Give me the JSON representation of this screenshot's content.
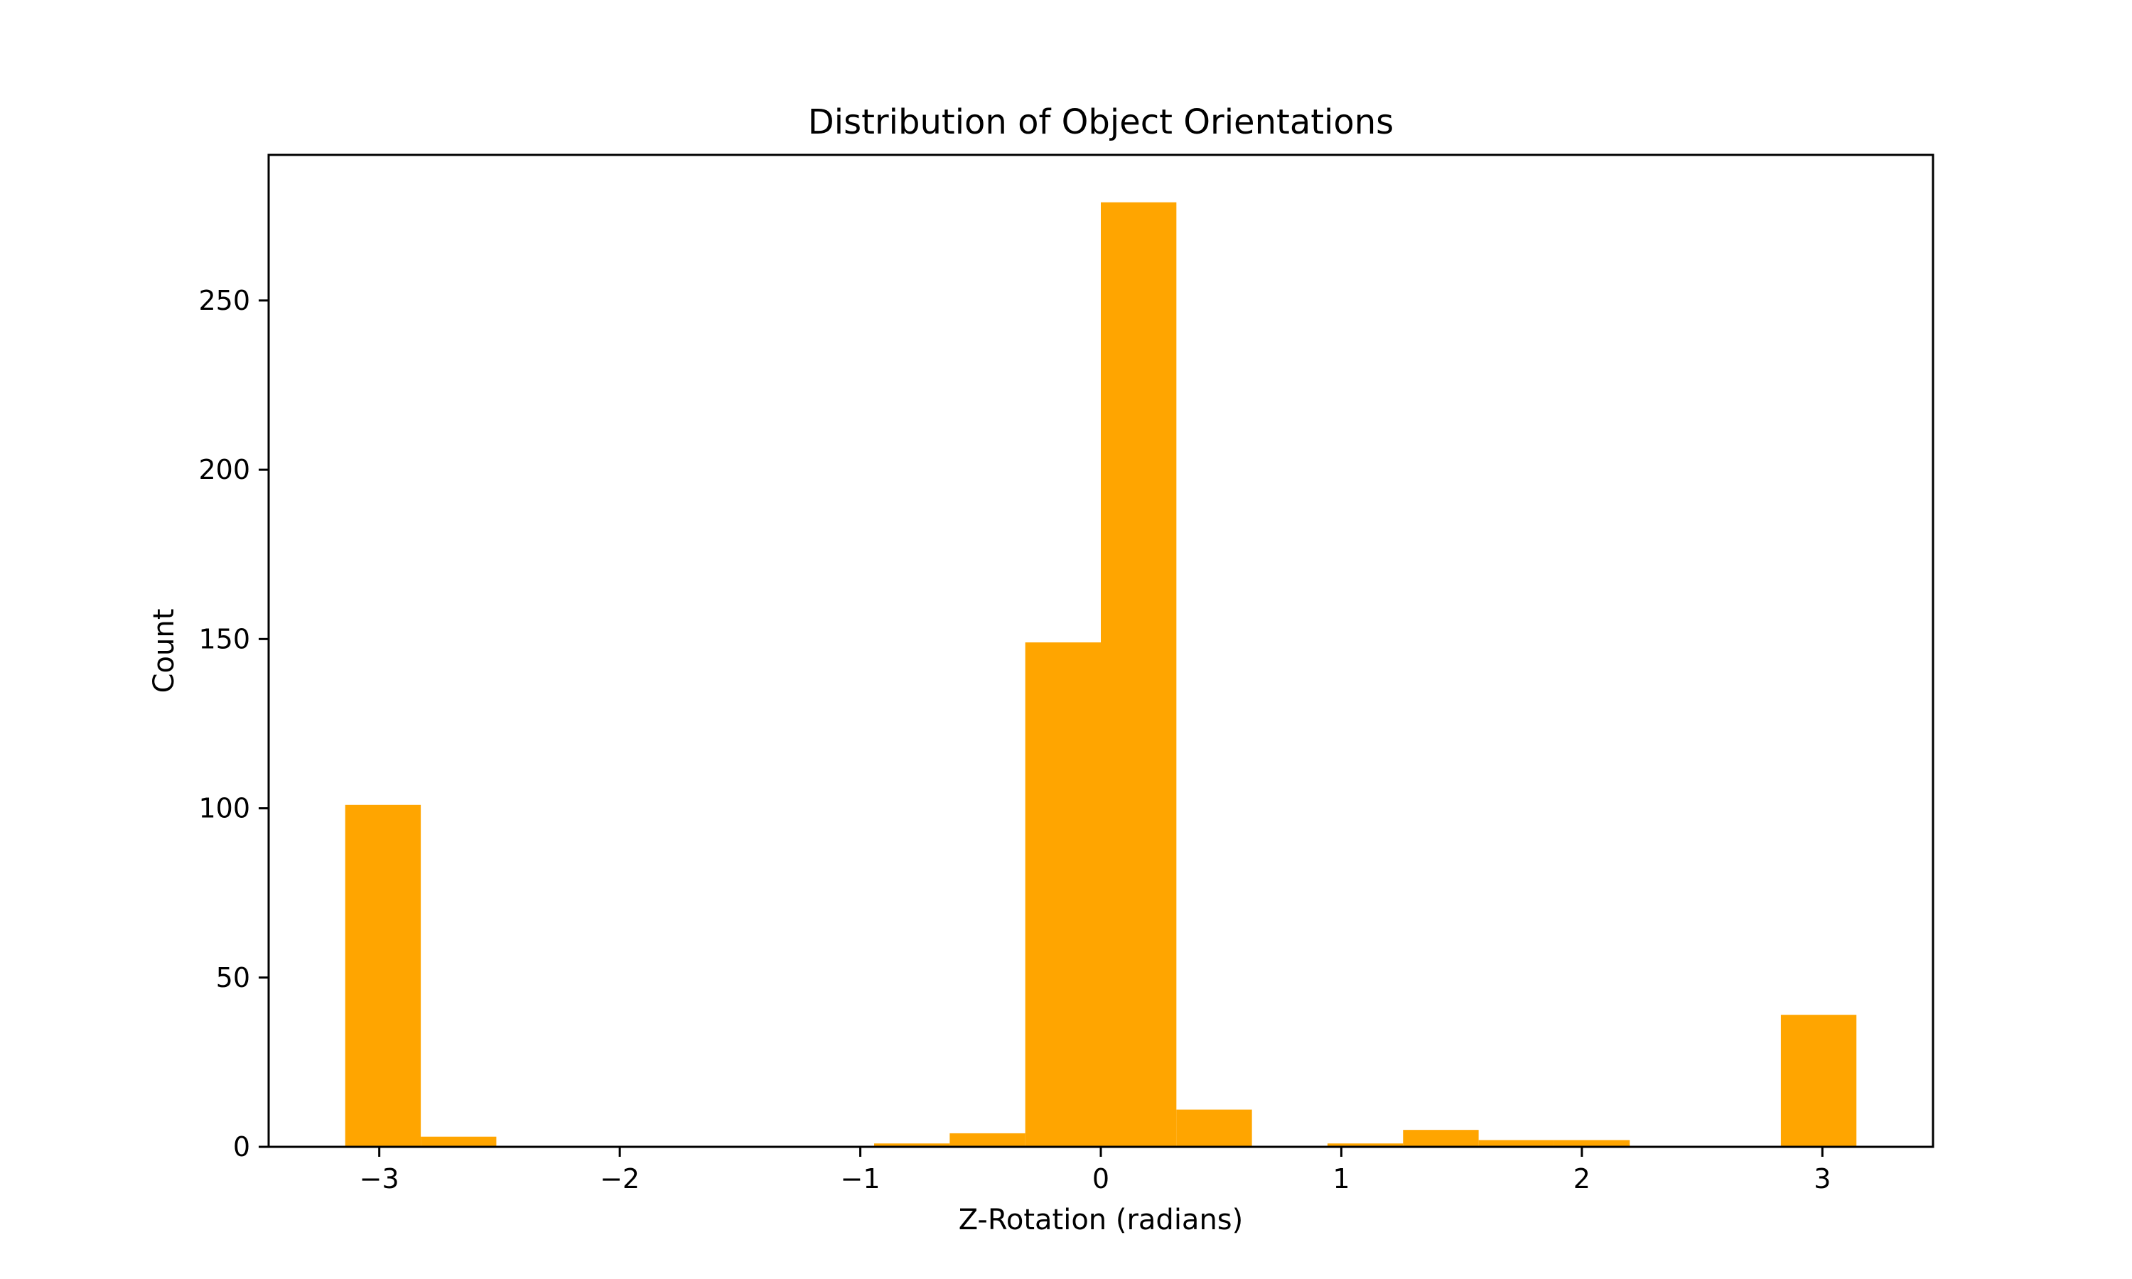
{
  "chart_data": {
    "type": "bar",
    "title": "Distribution of Object Orientations",
    "xlabel": "Z-Rotation (radians)",
    "ylabel": "Count",
    "xlim": [
      -3.46,
      3.46
    ],
    "ylim": [
      0,
      293
    ],
    "x_ticks": [
      -3,
      -2,
      -1,
      0,
      1,
      2,
      3
    ],
    "x_tick_labels": [
      "−3",
      "−2",
      "−1",
      "0",
      "1",
      "2",
      "3"
    ],
    "y_ticks": [
      0,
      50,
      100,
      150,
      200,
      250
    ],
    "y_tick_labels": [
      "0",
      "50",
      "100",
      "150",
      "200",
      "250"
    ],
    "bin_edges": [
      -3.1416,
      -2.8274,
      -2.5133,
      -2.1991,
      -1.885,
      -1.5708,
      -1.2566,
      -0.9425,
      -0.6283,
      -0.3142,
      0,
      0.3142,
      0.6283,
      0.9425,
      1.2566,
      1.5708,
      1.885,
      2.1991,
      2.5133,
      2.8274,
      3.1416
    ],
    "values": [
      101,
      3,
      0,
      0,
      0,
      0,
      0,
      1,
      4,
      149,
      279,
      11,
      0,
      1,
      5,
      2,
      2,
      0,
      0,
      39
    ],
    "bar_color": "#FFA500",
    "grid": false,
    "legend": "none"
  }
}
